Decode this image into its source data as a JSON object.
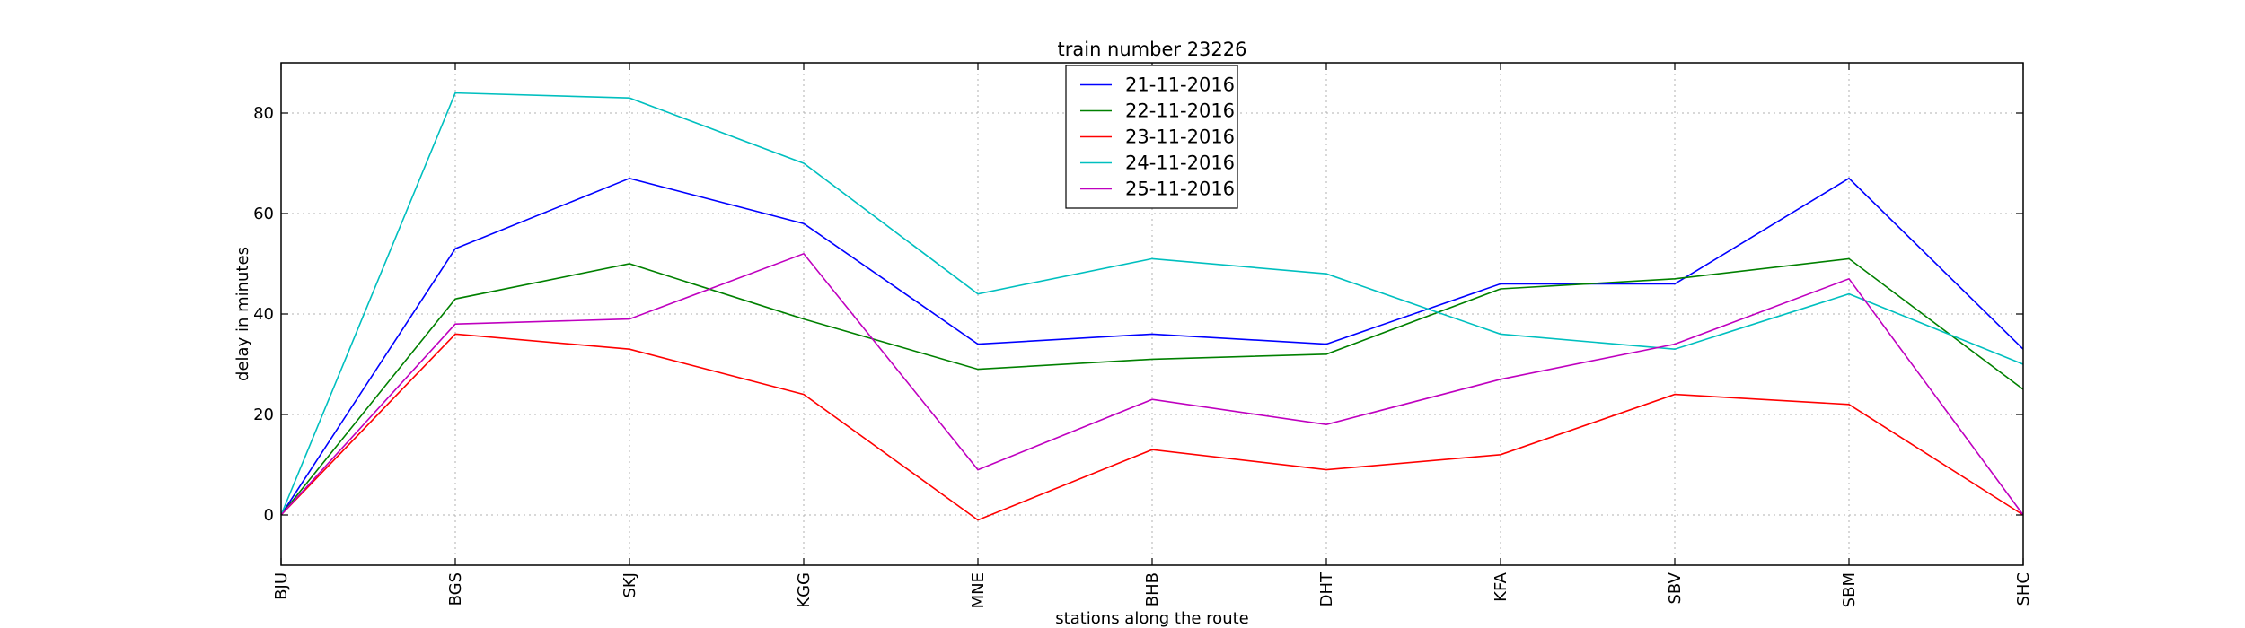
{
  "chart_data": {
    "type": "line",
    "title": "train number 23226",
    "xlabel": "stations along the route",
    "ylabel": "delay in minutes",
    "categories": [
      "BJU",
      "BGS",
      "SKJ",
      "KGG",
      "MNE",
      "BHB",
      "DHT",
      "KFA",
      "SBV",
      "SBM",
      "SHC"
    ],
    "ylim": [
      -10,
      90
    ],
    "yticks": [
      0,
      20,
      40,
      60,
      80
    ],
    "grid": true,
    "legend_position": "top-center",
    "series": [
      {
        "name": "21-11-2016",
        "color": "#0000ff",
        "values": [
          0,
          53,
          67,
          58,
          34,
          36,
          34,
          46,
          46,
          67,
          33
        ]
      },
      {
        "name": "22-11-2016",
        "color": "#008000",
        "values": [
          0,
          43,
          50,
          39,
          29,
          31,
          32,
          45,
          47,
          51,
          25
        ]
      },
      {
        "name": "23-11-2016",
        "color": "#ff0000",
        "values": [
          0,
          36,
          33,
          24,
          -1,
          13,
          9,
          12,
          24,
          22,
          0
        ]
      },
      {
        "name": "24-11-2016",
        "color": "#00bfbf",
        "values": [
          0,
          84,
          83,
          70,
          44,
          51,
          48,
          36,
          33,
          44,
          30
        ]
      },
      {
        "name": "25-11-2016",
        "color": "#bf00bf",
        "values": [
          0,
          38,
          39,
          52,
          9,
          23,
          18,
          27,
          34,
          47,
          0
        ]
      }
    ]
  }
}
